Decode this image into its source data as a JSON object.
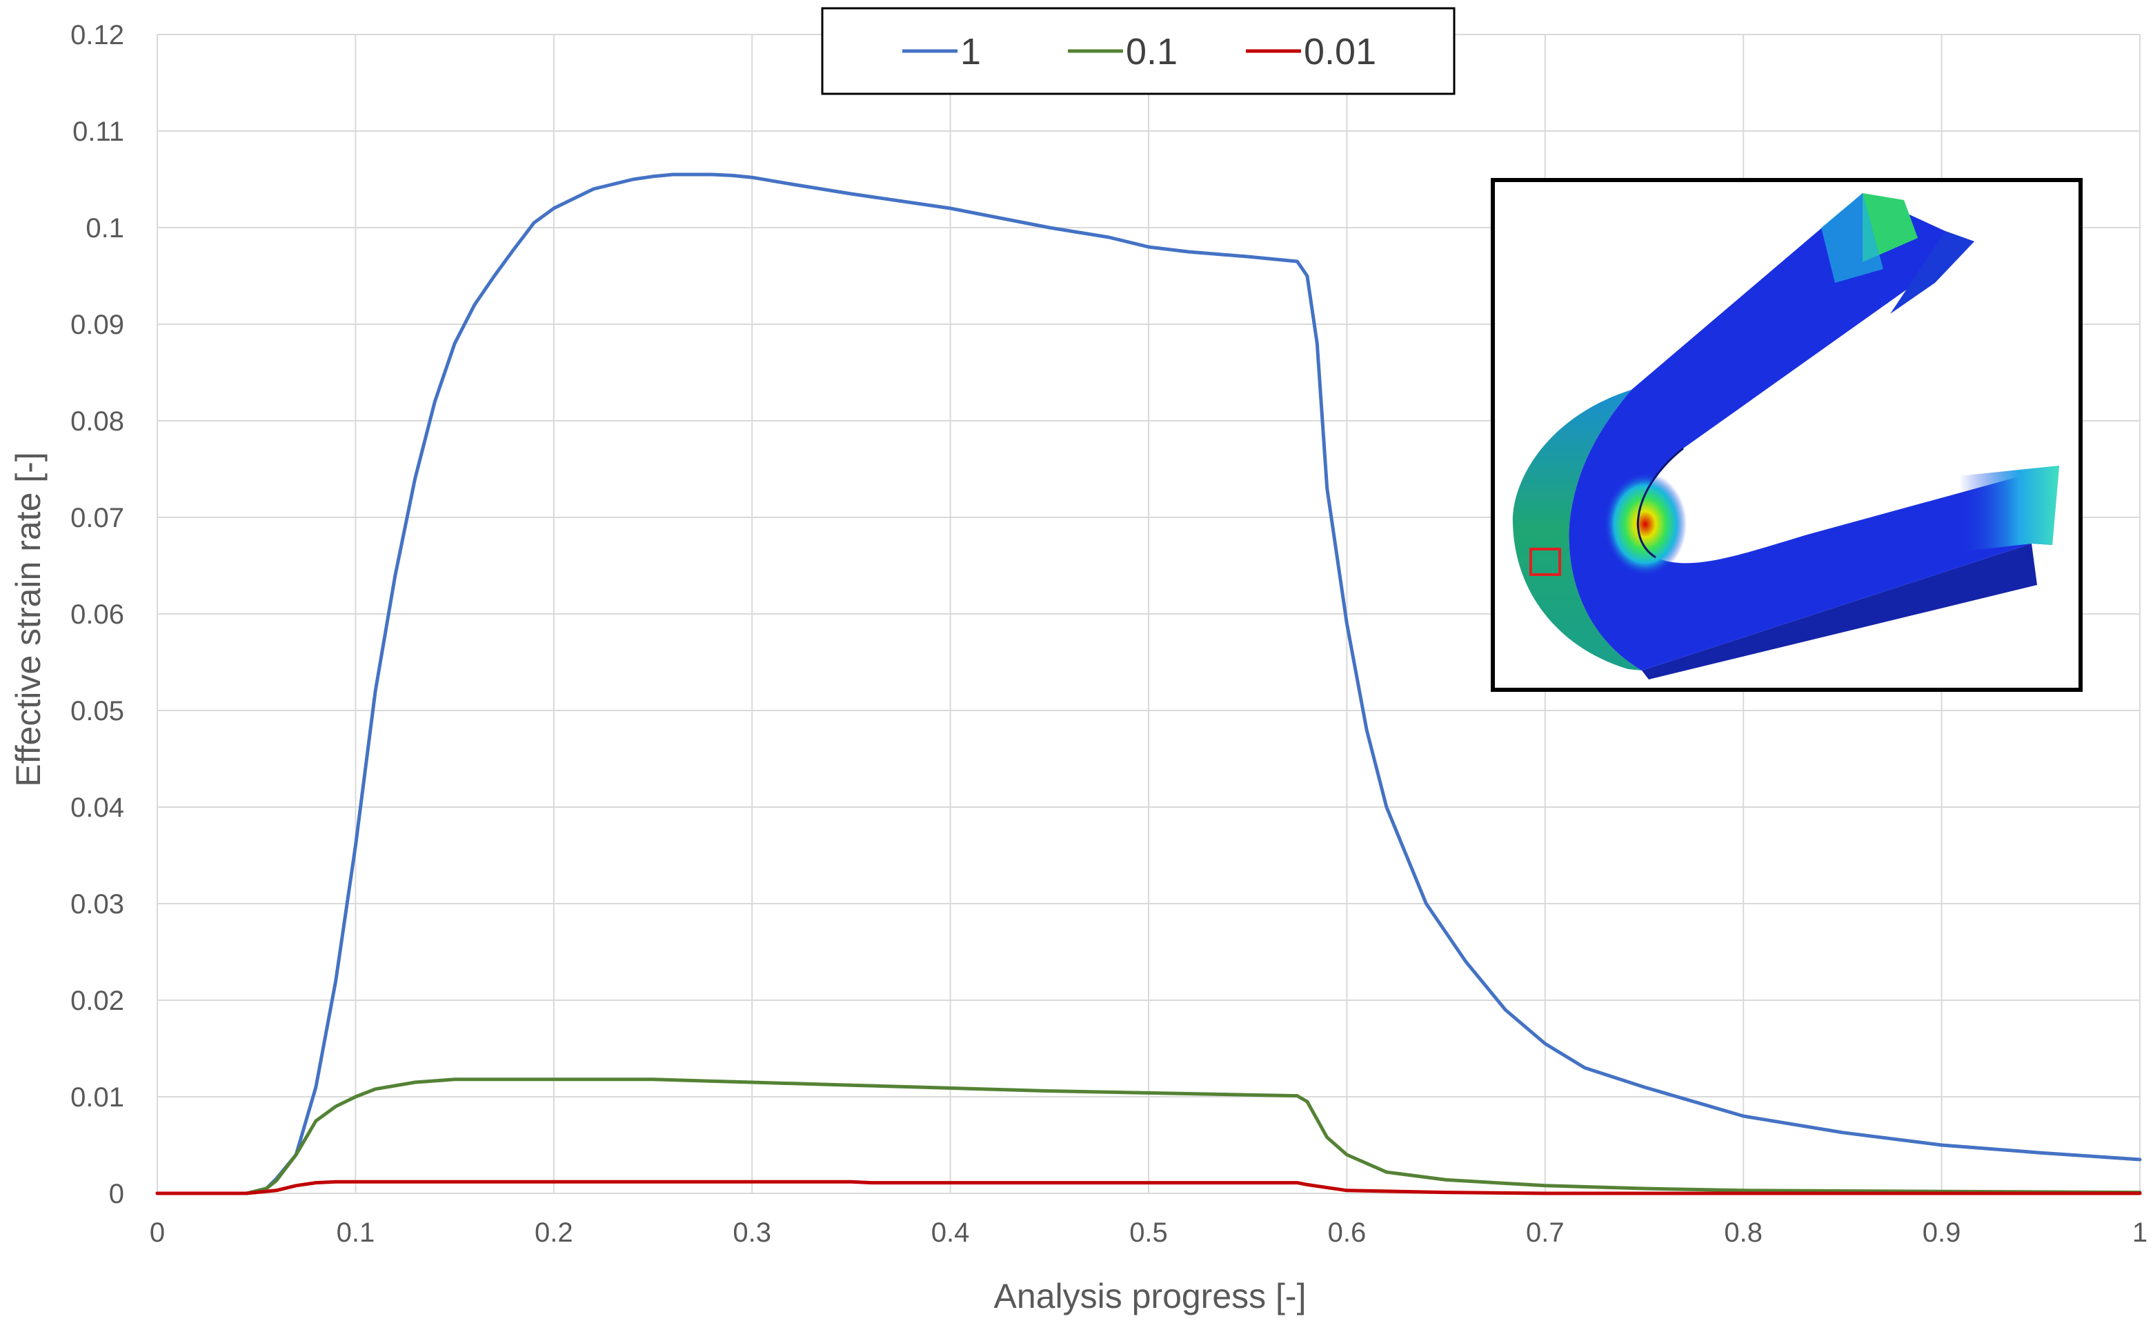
{
  "chart_data": {
    "type": "line",
    "title": "",
    "xlabel": "Analysis progress [-]",
    "ylabel": "Effective strain rate [-]",
    "xlim": [
      0,
      1
    ],
    "ylim": [
      0,
      0.12
    ],
    "x_ticks": [
      "0",
      "0.1",
      "0.2",
      "0.3",
      "0.4",
      "0.5",
      "0.6",
      "0.7",
      "0.8",
      "0.9",
      "1"
    ],
    "y_ticks": [
      "0",
      "0.01",
      "0.02",
      "0.03",
      "0.04",
      "0.05",
      "0.06",
      "0.07",
      "0.08",
      "0.09",
      "0.1",
      "0.11",
      "0.12"
    ],
    "grid": true,
    "legend_position": "top-center",
    "series": [
      {
        "name": "1",
        "color": "#4472c4",
        "x": [
          0,
          0.045,
          0.055,
          0.06,
          0.07,
          0.08,
          0.09,
          0.1,
          0.11,
          0.12,
          0.13,
          0.14,
          0.15,
          0.16,
          0.17,
          0.18,
          0.19,
          0.2,
          0.21,
          0.22,
          0.23,
          0.24,
          0.25,
          0.26,
          0.27,
          0.28,
          0.29,
          0.3,
          0.32,
          0.35,
          0.4,
          0.45,
          0.48,
          0.5,
          0.52,
          0.55,
          0.575,
          0.58,
          0.585,
          0.59,
          0.6,
          0.61,
          0.62,
          0.64,
          0.66,
          0.68,
          0.7,
          0.72,
          0.75,
          0.78,
          0.8,
          0.85,
          0.9,
          0.95,
          1.0
        ],
        "y": [
          0,
          0,
          0.0005,
          0.0015,
          0.004,
          0.011,
          0.022,
          0.036,
          0.052,
          0.064,
          0.074,
          0.082,
          0.088,
          0.092,
          0.095,
          0.0978,
          0.1005,
          0.102,
          0.103,
          0.104,
          0.1045,
          0.105,
          0.1053,
          0.1055,
          0.1055,
          0.1055,
          0.1054,
          0.1052,
          0.1045,
          0.1035,
          0.102,
          0.1,
          0.099,
          0.098,
          0.0975,
          0.097,
          0.0965,
          0.095,
          0.088,
          0.073,
          0.059,
          0.048,
          0.04,
          0.03,
          0.024,
          0.019,
          0.0155,
          0.013,
          0.011,
          0.0092,
          0.008,
          0.0063,
          0.005,
          0.0042,
          0.0035
        ]
      },
      {
        "name": "0.1",
        "color": "#548235",
        "x": [
          0,
          0.045,
          0.055,
          0.06,
          0.07,
          0.08,
          0.09,
          0.1,
          0.11,
          0.13,
          0.15,
          0.2,
          0.25,
          0.3,
          0.35,
          0.4,
          0.45,
          0.5,
          0.55,
          0.575,
          0.58,
          0.59,
          0.6,
          0.62,
          0.65,
          0.7,
          0.75,
          0.8,
          0.9,
          1.0
        ],
        "y": [
          0,
          0,
          0.0005,
          0.0013,
          0.004,
          0.0075,
          0.009,
          0.01,
          0.0108,
          0.0115,
          0.0118,
          0.0118,
          0.0118,
          0.0115,
          0.0112,
          0.0109,
          0.0106,
          0.0104,
          0.0102,
          0.0101,
          0.0095,
          0.0058,
          0.004,
          0.0022,
          0.0014,
          0.0008,
          0.0005,
          0.0003,
          0.0002,
          0.0001
        ]
      },
      {
        "name": "0.01",
        "color": "#c00000",
        "x": [
          0,
          0.045,
          0.06,
          0.07,
          0.08,
          0.09,
          0.1,
          0.2,
          0.3,
          0.35,
          0.36,
          0.4,
          0.5,
          0.575,
          0.58,
          0.6,
          0.65,
          0.7,
          0.8,
          1.0
        ],
        "y": [
          0,
          0,
          0.0003,
          0.0008,
          0.0011,
          0.0012,
          0.0012,
          0.0012,
          0.0012,
          0.0012,
          0.0011,
          0.0011,
          0.0011,
          0.0011,
          0.0009,
          0.0003,
          0.0001,
          0,
          0,
          0
        ]
      }
    ],
    "inset": {
      "type": "image",
      "content": "FEA contour plot of a U-shaped bent bar with a red marker square"
    }
  }
}
